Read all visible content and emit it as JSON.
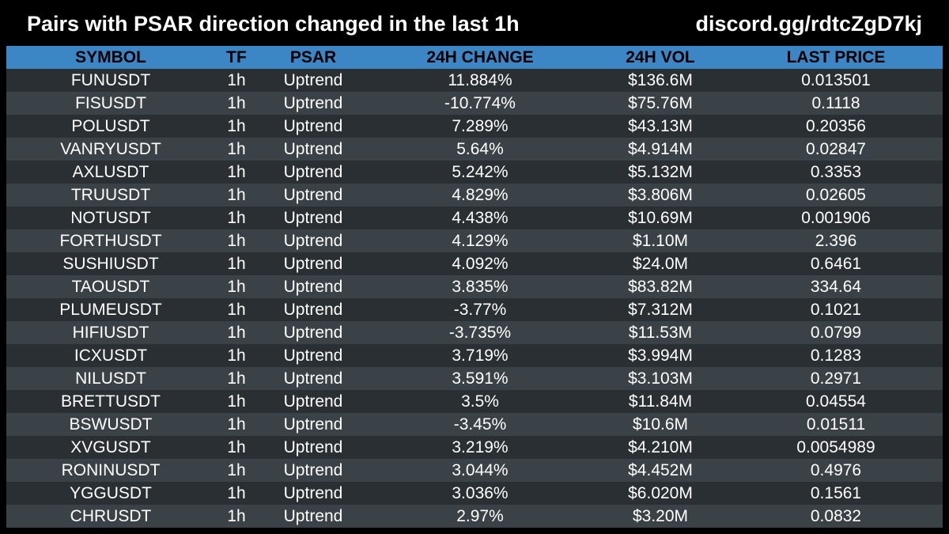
{
  "header": {
    "title": "Pairs with PSAR direction changed in the last 1h",
    "link": "discord.gg/rdtcZgD7kj"
  },
  "table": {
    "columns": [
      "SYMBOL",
      "TF",
      "PSAR",
      "24H CHANGE",
      "24H VOL",
      "LAST PRICE"
    ],
    "rows": [
      {
        "symbol": "FUNUSDT",
        "tf": "1h",
        "psar": "Uptrend",
        "change": "11.884%",
        "vol": "$136.6M",
        "price": "0.013501"
      },
      {
        "symbol": "FISUSDT",
        "tf": "1h",
        "psar": "Uptrend",
        "change": "-10.774%",
        "vol": "$75.76M",
        "price": "0.1118"
      },
      {
        "symbol": "POLUSDT",
        "tf": "1h",
        "psar": "Uptrend",
        "change": "7.289%",
        "vol": "$43.13M",
        "price": "0.20356"
      },
      {
        "symbol": "VANRYUSDT",
        "tf": "1h",
        "psar": "Uptrend",
        "change": "5.64%",
        "vol": "$4.914M",
        "price": "0.02847"
      },
      {
        "symbol": "AXLUSDT",
        "tf": "1h",
        "psar": "Uptrend",
        "change": "5.242%",
        "vol": "$5.132M",
        "price": "0.3353"
      },
      {
        "symbol": "TRUUSDT",
        "tf": "1h",
        "psar": "Uptrend",
        "change": "4.829%",
        "vol": "$3.806M",
        "price": "0.02605"
      },
      {
        "symbol": "NOTUSDT",
        "tf": "1h",
        "psar": "Uptrend",
        "change": "4.438%",
        "vol": "$10.69M",
        "price": "0.001906"
      },
      {
        "symbol": "FORTHUSDT",
        "tf": "1h",
        "psar": "Uptrend",
        "change": "4.129%",
        "vol": "$1.10M",
        "price": "2.396"
      },
      {
        "symbol": "SUSHIUSDT",
        "tf": "1h",
        "psar": "Uptrend",
        "change": "4.092%",
        "vol": "$24.0M",
        "price": "0.6461"
      },
      {
        "symbol": "TAOUSDT",
        "tf": "1h",
        "psar": "Uptrend",
        "change": "3.835%",
        "vol": "$83.82M",
        "price": "334.64"
      },
      {
        "symbol": "PLUMEUSDT",
        "tf": "1h",
        "psar": "Uptrend",
        "change": "-3.77%",
        "vol": "$7.312M",
        "price": "0.1021"
      },
      {
        "symbol": "HIFIUSDT",
        "tf": "1h",
        "psar": "Uptrend",
        "change": "-3.735%",
        "vol": "$11.53M",
        "price": "0.0799"
      },
      {
        "symbol": "ICXUSDT",
        "tf": "1h",
        "psar": "Uptrend",
        "change": "3.719%",
        "vol": "$3.994M",
        "price": "0.1283"
      },
      {
        "symbol": "NILUSDT",
        "tf": "1h",
        "psar": "Uptrend",
        "change": "3.591%",
        "vol": "$3.103M",
        "price": "0.2971"
      },
      {
        "symbol": "BRETTUSDT",
        "tf": "1h",
        "psar": "Uptrend",
        "change": "3.5%",
        "vol": "$11.84M",
        "price": "0.04554"
      },
      {
        "symbol": "BSWUSDT",
        "tf": "1h",
        "psar": "Uptrend",
        "change": "-3.45%",
        "vol": "$10.6M",
        "price": "0.01511"
      },
      {
        "symbol": "XVGUSDT",
        "tf": "1h",
        "psar": "Uptrend",
        "change": "3.219%",
        "vol": "$4.210M",
        "price": "0.0054989"
      },
      {
        "symbol": "RONINUSDT",
        "tf": "1h",
        "psar": "Uptrend",
        "change": "3.044%",
        "vol": "$4.452M",
        "price": "0.4976"
      },
      {
        "symbol": "YGGUSDT",
        "tf": "1h",
        "psar": "Uptrend",
        "change": "3.036%",
        "vol": "$6.020M",
        "price": "0.1561"
      },
      {
        "symbol": "CHRUSDT",
        "tf": "1h",
        "psar": "Uptrend",
        "change": "2.97%",
        "vol": "$3.20M",
        "price": "0.0832"
      }
    ]
  },
  "colors": {
    "header_bg": "#000000",
    "column_header_bg": "#3d86c6",
    "row_dark": "#2a2f34",
    "row_light": "#3b4247",
    "text": "#ffffff"
  }
}
